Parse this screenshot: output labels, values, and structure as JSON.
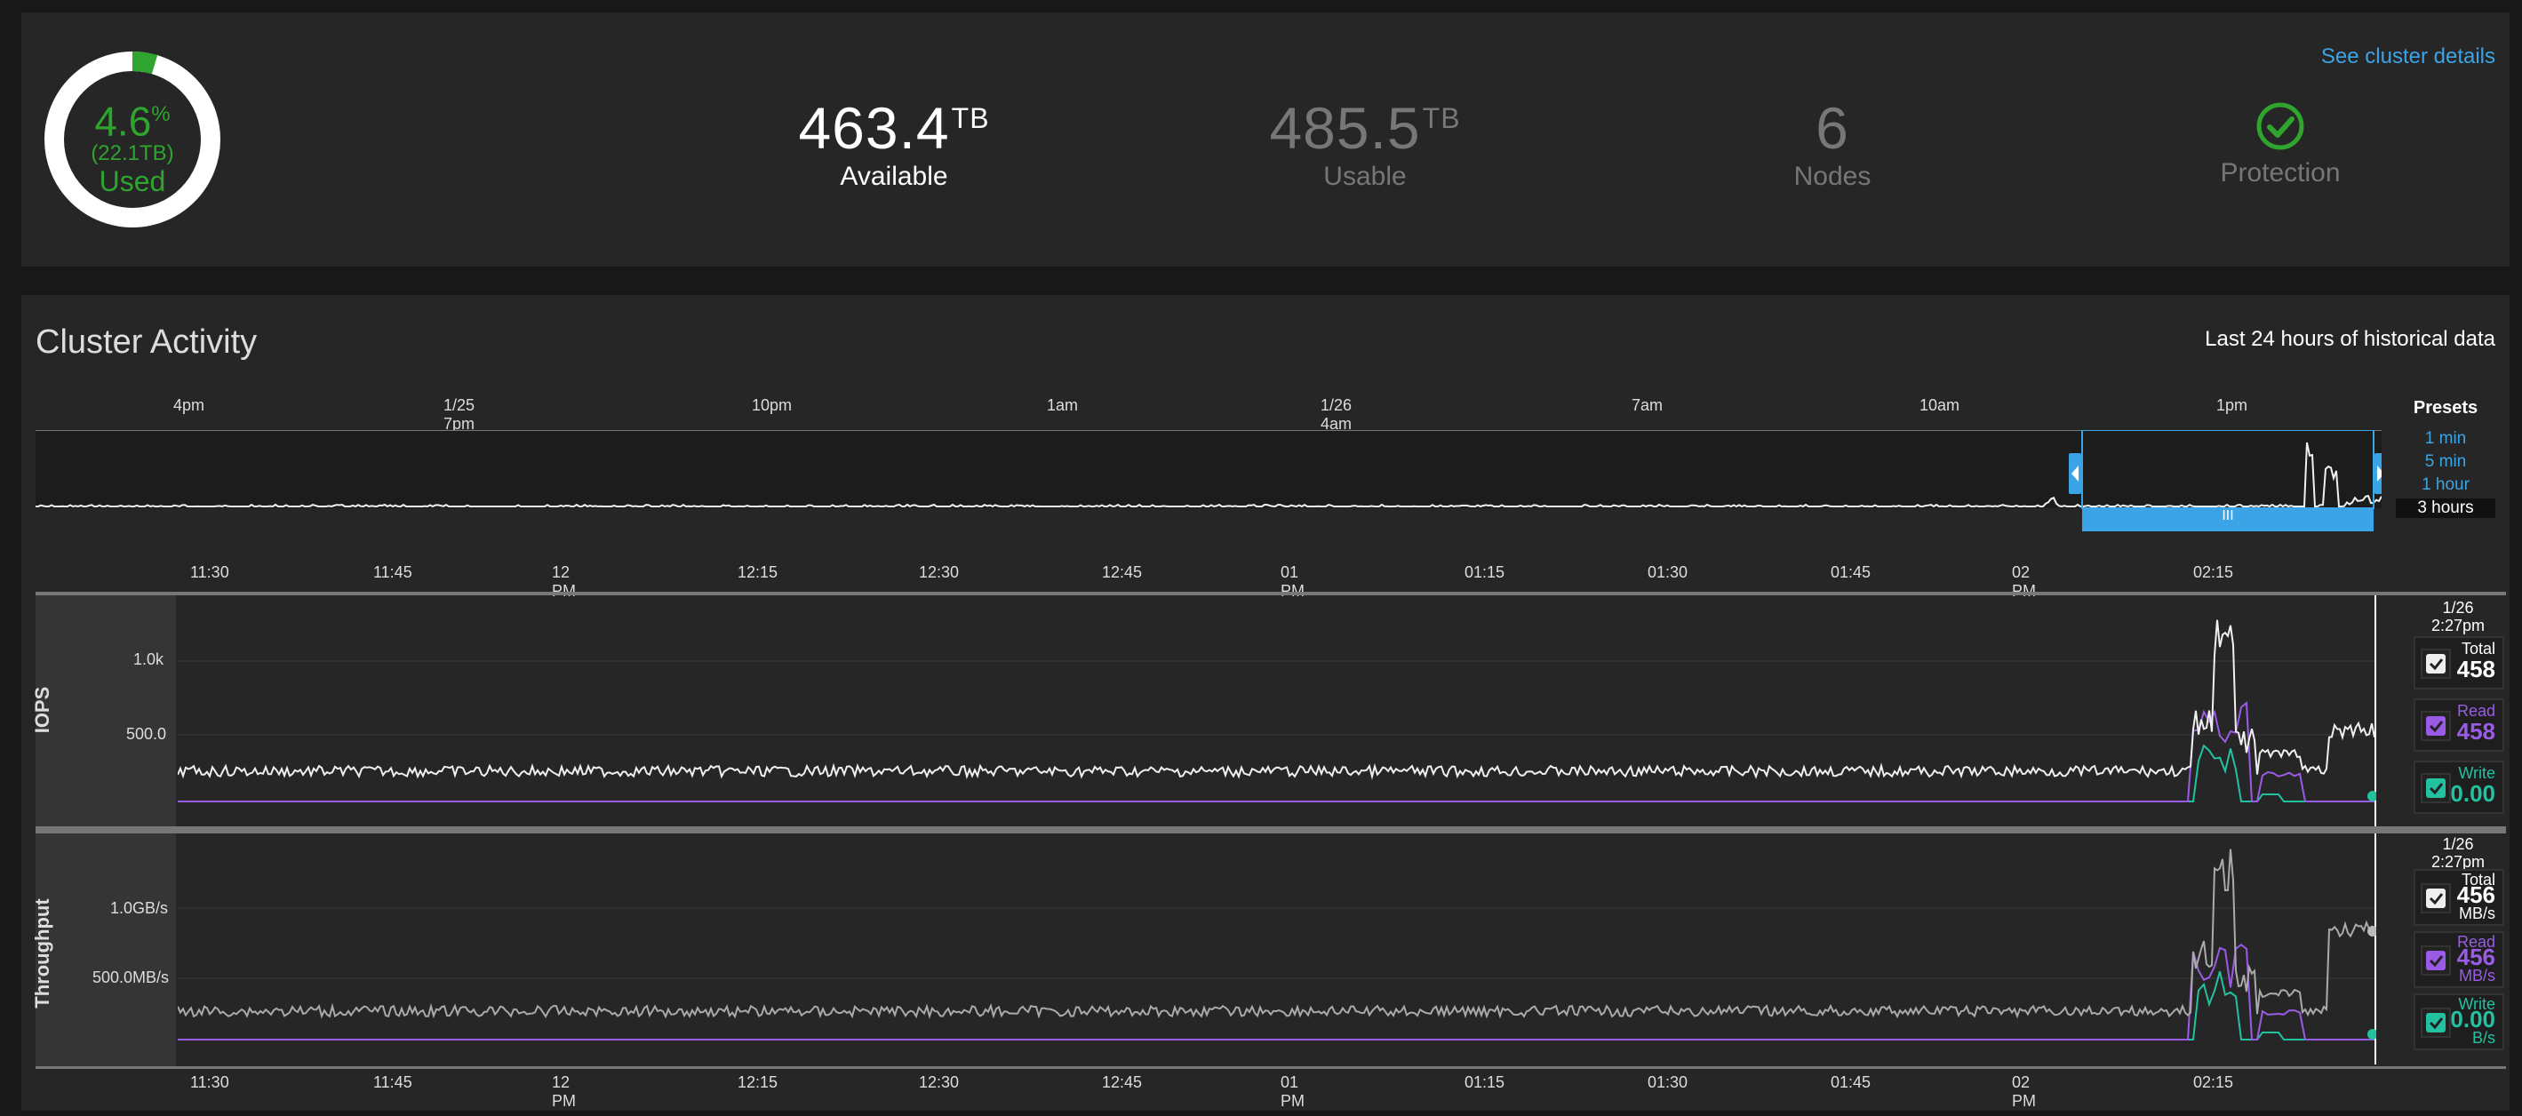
{
  "summary": {
    "used_pct": "4.6",
    "used_pct_unit": "%",
    "used_pct_fraction": 0.046,
    "used_size": "(22.1TB)",
    "used_label": "Used",
    "available_value": "463.4",
    "available_unit": "TB",
    "available_label": "Available",
    "usable_value": "485.5",
    "usable_unit": "TB",
    "usable_label": "Usable",
    "nodes_value": "6",
    "nodes_label": "Nodes",
    "protection_label": "Protection",
    "protection_icon": "check-circle-icon",
    "details_link": "See cluster details"
  },
  "activity": {
    "title": "Cluster Activity",
    "range_note": "Last 24 hours of historical data",
    "presets_title": "Presets",
    "presets": [
      "1 min",
      "5 min",
      "1 hour",
      "3 hours"
    ],
    "active_preset": "3 hours",
    "overview_ticks": [
      "4pm",
      "1/25 7pm",
      "10pm",
      "1am",
      "1/26 4am",
      "7am",
      "10am",
      "1pm"
    ],
    "detail_ticks": [
      "11:30",
      "11:45",
      "12 PM",
      "12:15",
      "12:30",
      "12:45",
      "01 PM",
      "01:15",
      "01:30",
      "01:45",
      "02 PM",
      "02:15"
    ],
    "brush_grip": "III"
  },
  "iops": {
    "label": "IOPS",
    "y_ticks": [
      "1.0k",
      "500.0"
    ],
    "timestamp_date": "1/26",
    "timestamp_time": "2:27pm",
    "total_label": "Total",
    "total_value": "458",
    "read_label": "Read",
    "read_value": "458",
    "write_label": "Write",
    "write_value": "0.00"
  },
  "throughput": {
    "label": "Throughput",
    "y_ticks": [
      "1.0GB/s",
      "500.0MB/s"
    ],
    "timestamp_date": "1/26",
    "timestamp_time": "2:27pm",
    "total_label": "Total",
    "total_value": "456",
    "total_unit": "MB/s",
    "read_label": "Read",
    "read_value": "456",
    "read_unit": "MB/s",
    "write_label": "Write",
    "write_value": "0.00",
    "write_unit": "B/s"
  },
  "colors": {
    "green": "#2fa42f",
    "blue": "#3ba4e6",
    "purple": "#9a5ce6",
    "teal": "#22c1a0",
    "white": "#f0f0f0"
  }
}
